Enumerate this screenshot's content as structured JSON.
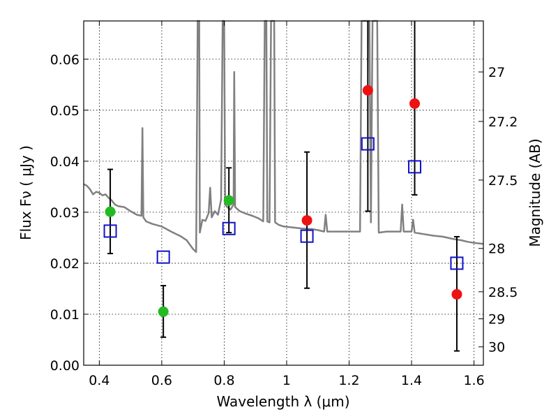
{
  "chart_data": {
    "type": "scatter",
    "title": "",
    "xlabel": "Wavelength  λ (μm)",
    "ylabel": "Flux  Fν  ( μJy )",
    "y2label": "Magnitude (AB)",
    "xlim": [
      0.35,
      1.63
    ],
    "ylim": [
      0.0,
      0.0675
    ],
    "grid": true,
    "legend": "none",
    "x_ticks": [
      0.4,
      0.6,
      0.8,
      1.0,
      1.2,
      1.4,
      1.6
    ],
    "x_tick_labels": [
      "0.4",
      "0.6",
      "0.8",
      "1",
      "1.2",
      "1.4",
      "1.6"
    ],
    "y_ticks": [
      0.0,
      0.01,
      0.02,
      0.03,
      0.04,
      0.05,
      0.06
    ],
    "y_tick_labels": [
      "0.00",
      "0.01",
      "0.02",
      "0.03",
      "0.04",
      "0.05",
      "0.06"
    ],
    "y2_ticks": [
      {
        "label": "27",
        "flux": 0.0575
      },
      {
        "label": "27.2",
        "flux": 0.0478
      },
      {
        "label": "27.5",
        "flux": 0.0363
      },
      {
        "label": "28",
        "flux": 0.0229
      },
      {
        "label": "28.5",
        "flux": 0.0144
      },
      {
        "label": "29",
        "flux": 0.0091
      },
      {
        "label": "30",
        "flux": 0.0036
      }
    ],
    "colors": {
      "ground_points": "#22bb22",
      "ir_points": "#ee1111",
      "model_boxes": "#1111cc",
      "spectrum": "#808080",
      "errorbars": "#000000"
    },
    "series": [
      {
        "marker": "green-circle",
        "points": [
          {
            "x": 0.435,
            "y": 0.0301,
            "ylo": 0.0219,
            "yhi": 0.0384
          },
          {
            "x": 0.605,
            "y": 0.0105,
            "ylo": 0.0055,
            "yhi": 0.0156
          },
          {
            "x": 0.815,
            "y": 0.0323,
            "ylo": 0.026,
            "yhi": 0.0387
          }
        ]
      },
      {
        "marker": "red-circle",
        "points": [
          {
            "x": 1.065,
            "y": 0.0284,
            "ylo": 0.0151,
            "yhi": 0.0418
          },
          {
            "x": 1.26,
            "y": 0.0539,
            "ylo": 0.0302,
            "yhi": 0.0675
          },
          {
            "x": 1.41,
            "y": 0.0513,
            "ylo": 0.0334,
            "yhi": 0.0675
          },
          {
            "x": 1.545,
            "y": 0.0139,
            "ylo": 0.0028,
            "yhi": 0.0252
          }
        ]
      },
      {
        "marker": "blue-open-square",
        "points": [
          {
            "x": 0.435,
            "y": 0.0263
          },
          {
            "x": 0.605,
            "y": 0.0212
          },
          {
            "x": 0.815,
            "y": 0.0268
          },
          {
            "x": 1.065,
            "y": 0.0253
          },
          {
            "x": 1.26,
            "y": 0.0434
          },
          {
            "x": 1.41,
            "y": 0.0389
          },
          {
            "x": 1.545,
            "y": 0.02
          }
        ]
      },
      {
        "marker": "gray-line",
        "points": [
          [
            0.35,
            0.0355
          ],
          [
            0.36,
            0.0352
          ],
          [
            0.37,
            0.0345
          ],
          [
            0.38,
            0.0335
          ],
          [
            0.39,
            0.034
          ],
          [
            0.4,
            0.0338
          ],
          [
            0.41,
            0.0333
          ],
          [
            0.42,
            0.0335
          ],
          [
            0.43,
            0.0328
          ],
          [
            0.44,
            0.0323
          ],
          [
            0.45,
            0.0315
          ],
          [
            0.46,
            0.0312
          ],
          [
            0.48,
            0.031
          ],
          [
            0.5,
            0.0302
          ],
          [
            0.52,
            0.0295
          ],
          [
            0.535,
            0.0293
          ],
          [
            0.538,
            0.0465
          ],
          [
            0.541,
            0.029
          ],
          [
            0.55,
            0.0282
          ],
          [
            0.57,
            0.0277
          ],
          [
            0.6,
            0.0272
          ],
          [
            0.63,
            0.0262
          ],
          [
            0.66,
            0.0253
          ],
          [
            0.68,
            0.0245
          ],
          [
            0.7,
            0.0228
          ],
          [
            0.71,
            0.0222
          ],
          [
            0.715,
            0.0675
          ],
          [
            0.72,
            0.0675
          ],
          [
            0.722,
            0.026
          ],
          [
            0.73,
            0.0285
          ],
          [
            0.74,
            0.0283
          ],
          [
            0.75,
            0.0298
          ],
          [
            0.755,
            0.0348
          ],
          [
            0.76,
            0.029
          ],
          [
            0.77,
            0.0302
          ],
          [
            0.78,
            0.0295
          ],
          [
            0.79,
            0.0325
          ],
          [
            0.795,
            0.0675
          ],
          [
            0.8,
            0.0675
          ],
          [
            0.803,
            0.0315
          ],
          [
            0.81,
            0.031
          ],
          [
            0.82,
            0.0305
          ],
          [
            0.83,
            0.0315
          ],
          [
            0.832,
            0.0575
          ],
          [
            0.835,
            0.031
          ],
          [
            0.85,
            0.0302
          ],
          [
            0.87,
            0.0297
          ],
          [
            0.89,
            0.0293
          ],
          [
            0.91,
            0.0288
          ],
          [
            0.925,
            0.0282
          ],
          [
            0.93,
            0.0675
          ],
          [
            0.935,
            0.0675
          ],
          [
            0.938,
            0.0282
          ],
          [
            0.945,
            0.028
          ],
          [
            0.95,
            0.0675
          ],
          [
            0.96,
            0.0675
          ],
          [
            0.963,
            0.028
          ],
          [
            0.975,
            0.0275
          ],
          [
            0.99,
            0.0272
          ],
          [
            1.02,
            0.027
          ],
          [
            1.05,
            0.0268
          ],
          [
            1.08,
            0.0267
          ],
          [
            1.1,
            0.0265
          ],
          [
            1.12,
            0.0262
          ],
          [
            1.125,
            0.0295
          ],
          [
            1.13,
            0.0262
          ],
          [
            1.16,
            0.0262
          ],
          [
            1.19,
            0.0262
          ],
          [
            1.22,
            0.0262
          ],
          [
            1.235,
            0.0262
          ],
          [
            1.24,
            0.0675
          ],
          [
            1.255,
            0.0675
          ],
          [
            1.258,
            0.0675
          ],
          [
            1.265,
            0.0675
          ],
          [
            1.27,
            0.028
          ],
          [
            1.275,
            0.0675
          ],
          [
            1.29,
            0.0675
          ],
          [
            1.295,
            0.026
          ],
          [
            1.32,
            0.0262
          ],
          [
            1.35,
            0.0262
          ],
          [
            1.365,
            0.0262
          ],
          [
            1.37,
            0.0315
          ],
          [
            1.375,
            0.0262
          ],
          [
            1.4,
            0.0262
          ],
          [
            1.405,
            0.0285
          ],
          [
            1.41,
            0.026
          ],
          [
            1.44,
            0.0257
          ],
          [
            1.47,
            0.0254
          ],
          [
            1.5,
            0.0252
          ],
          [
            1.53,
            0.0248
          ],
          [
            1.56,
            0.0245
          ],
          [
            1.58,
            0.0242
          ],
          [
            1.6,
            0.024
          ],
          [
            1.63,
            0.0238
          ]
        ]
      }
    ]
  }
}
